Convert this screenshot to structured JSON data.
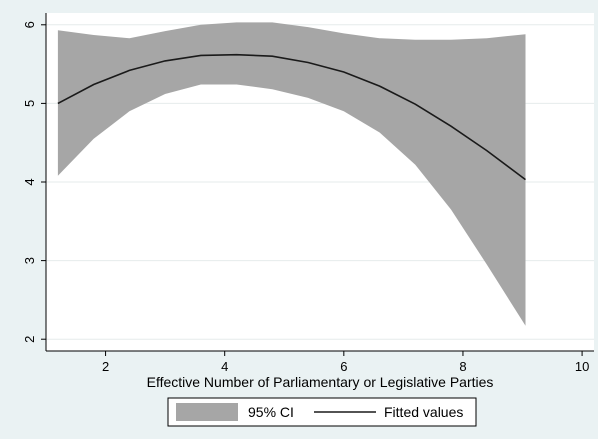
{
  "chart_data": {
    "type": "area",
    "xlabel": "Effective Number of Parliamentary or Legislative Parties",
    "ylabel": "",
    "xlim": [
      1,
      10.2
    ],
    "ylim": [
      1.85,
      6.15
    ],
    "x_ticks": [
      2,
      4,
      6,
      8,
      10
    ],
    "y_ticks": [
      2,
      3,
      4,
      5,
      6
    ],
    "grid": "horizontal",
    "legend_position": "bottom",
    "colors": {
      "band": "#a6a6a6",
      "line": "#1a1a1a",
      "plot_bg": "#ffffff",
      "outer_bg": "#eaf2f3",
      "grid": "#e6ebeb"
    },
    "series": [
      {
        "name": "95% CI",
        "kind": "band",
        "x": [
          1.2,
          1.8,
          2.4,
          3.0,
          3.6,
          4.2,
          4.8,
          5.4,
          6.0,
          6.6,
          7.2,
          7.8,
          8.4,
          9.05
        ],
        "lower": [
          4.08,
          4.55,
          4.9,
          5.12,
          5.24,
          5.24,
          5.18,
          5.07,
          4.9,
          4.63,
          4.22,
          3.65,
          2.95,
          2.17
        ],
        "upper": [
          5.93,
          5.87,
          5.83,
          5.92,
          6.0,
          6.03,
          6.03,
          5.97,
          5.89,
          5.83,
          5.81,
          5.81,
          5.83,
          5.88
        ]
      },
      {
        "name": "Fitted values",
        "kind": "line",
        "x": [
          1.2,
          1.8,
          2.4,
          3.0,
          3.6,
          4.2,
          4.8,
          5.4,
          6.0,
          6.6,
          7.2,
          7.8,
          8.4,
          9.05
        ],
        "y": [
          5.0,
          5.24,
          5.42,
          5.54,
          5.61,
          5.62,
          5.6,
          5.52,
          5.4,
          5.22,
          4.99,
          4.71,
          4.4,
          4.03
        ]
      }
    ]
  }
}
